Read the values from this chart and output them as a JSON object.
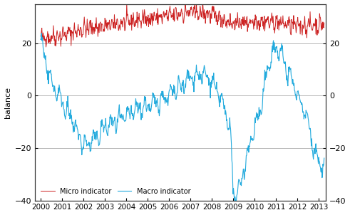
{
  "title": "",
  "ylabel_left": "balance",
  "micro_color": "#cc2222",
  "macro_color": "#22aadd",
  "background_color": "#ffffff",
  "grid_color": "#999999",
  "ylim": [
    -40,
    35
  ],
  "yticks": [
    -40,
    -20,
    0,
    20
  ],
  "xlim_start": 1999.75,
  "xlim_end": 2013.33,
  "xtick_years": [
    2000,
    2001,
    2002,
    2003,
    2004,
    2005,
    2006,
    2007,
    2008,
    2009,
    2010,
    2011,
    2012,
    2013
  ],
  "legend_items": [
    "Micro indicator",
    "Macro indicator"
  ],
  "legend_loc": "lower left"
}
